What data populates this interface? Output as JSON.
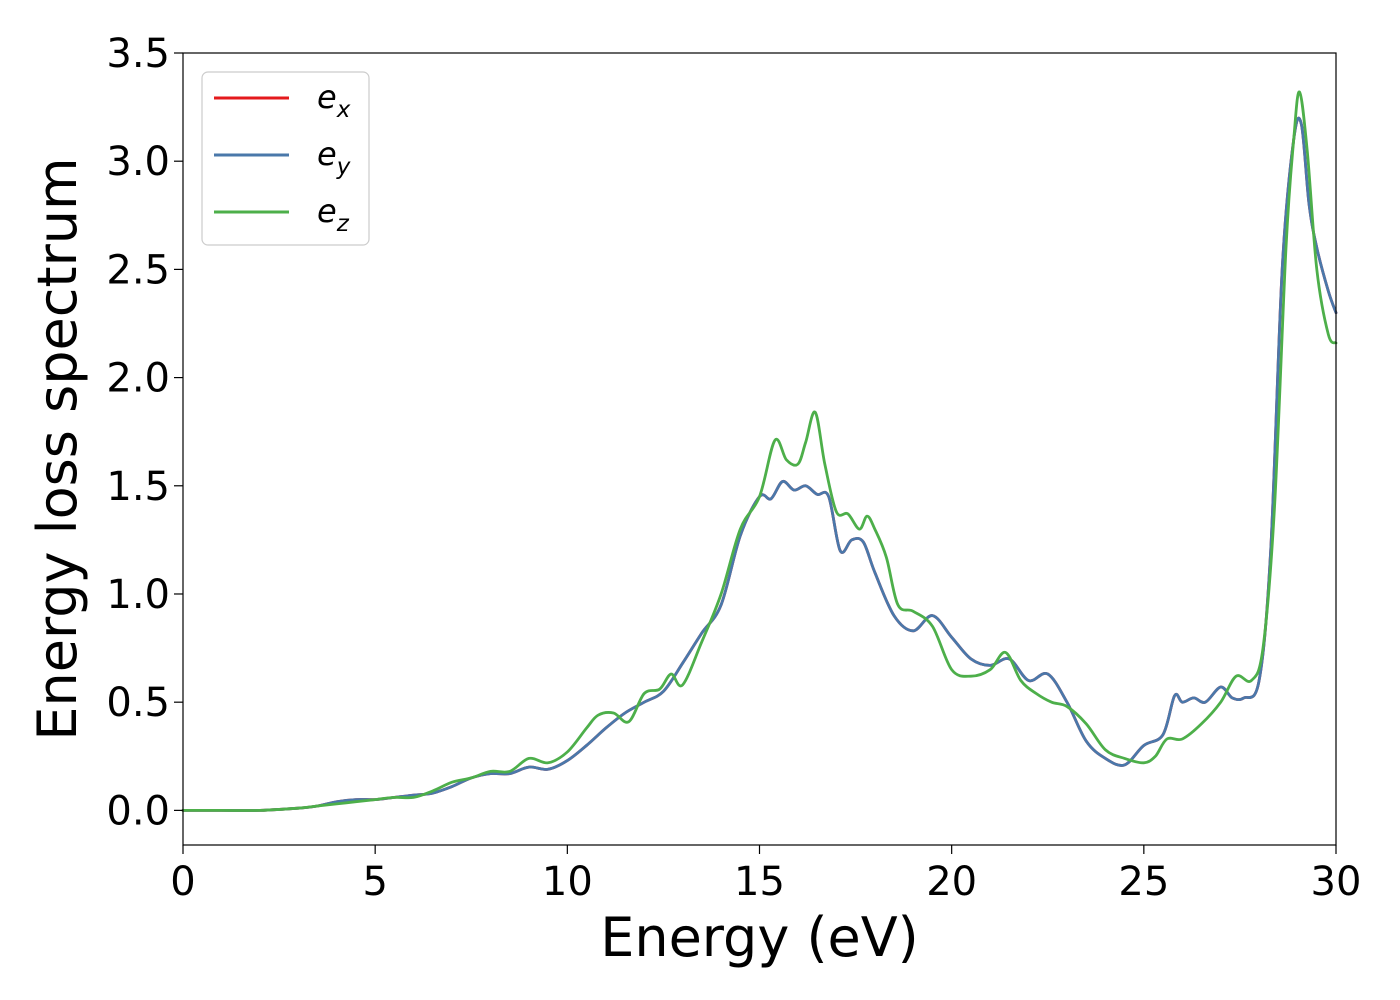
{
  "chart_data": {
    "type": "line",
    "xlabel": "Energy (eV)",
    "ylabel": "Energy loss spectrum",
    "xlim": [
      0,
      30
    ],
    "ylim": [
      -0.16,
      3.5
    ],
    "xticks": [
      0,
      5,
      10,
      15,
      20,
      25,
      30
    ],
    "xtick_labels": [
      "0",
      "5",
      "10",
      "15",
      "20",
      "25",
      "30"
    ],
    "yticks": [
      0.0,
      0.5,
      1.0,
      1.5,
      2.0,
      2.5,
      3.0,
      3.5
    ],
    "ytick_labels": [
      "0.0",
      "0.5",
      "1.0",
      "1.5",
      "2.0",
      "2.5",
      "3.0",
      "3.5"
    ],
    "grid": false,
    "legend_position": "top-left",
    "series": [
      {
        "name": "e",
        "subscript": "x",
        "color": "#e41a1c",
        "x": [
          0,
          1,
          2,
          3,
          3.5,
          4,
          4.5,
          5,
          5.5,
          6,
          6.5,
          7,
          7.5,
          8,
          8.5,
          9,
          9.5,
          10,
          10.5,
          11,
          11.5,
          12,
          12.5,
          13,
          13.5,
          14,
          14.5,
          15,
          15.3,
          15.6,
          15.9,
          16.2,
          16.5,
          16.8,
          17.1,
          17.4,
          17.7,
          18,
          18.5,
          19,
          19.5,
          20,
          20.5,
          21,
          21.5,
          22,
          22.5,
          23,
          23.5,
          24,
          24.5,
          25,
          25.5,
          25.8,
          26,
          26.3,
          26.6,
          27,
          27.3,
          27.6,
          28,
          28.3,
          28.6,
          28.9,
          29.1,
          29.3,
          29.5,
          29.8,
          30
        ],
        "y": [
          0,
          0,
          0,
          0.01,
          0.02,
          0.04,
          0.05,
          0.05,
          0.06,
          0.07,
          0.08,
          0.11,
          0.15,
          0.17,
          0.17,
          0.2,
          0.19,
          0.23,
          0.3,
          0.38,
          0.45,
          0.5,
          0.55,
          0.68,
          0.82,
          0.95,
          1.27,
          1.45,
          1.44,
          1.52,
          1.48,
          1.5,
          1.46,
          1.45,
          1.2,
          1.25,
          1.24,
          1.1,
          0.9,
          0.83,
          0.9,
          0.8,
          0.7,
          0.67,
          0.7,
          0.6,
          0.63,
          0.5,
          0.32,
          0.24,
          0.21,
          0.3,
          0.35,
          0.53,
          0.5,
          0.52,
          0.5,
          0.57,
          0.52,
          0.52,
          0.6,
          1.2,
          2.5,
          3.1,
          3.17,
          2.8,
          2.6,
          2.4,
          2.3
        ]
      },
      {
        "name": "e",
        "subscript": "y",
        "color": "#4a78aa",
        "x": [
          0,
          1,
          2,
          3,
          3.5,
          4,
          4.5,
          5,
          5.5,
          6,
          6.5,
          7,
          7.5,
          8,
          8.5,
          9,
          9.5,
          10,
          10.5,
          11,
          11.5,
          12,
          12.5,
          13,
          13.5,
          14,
          14.5,
          15,
          15.3,
          15.6,
          15.9,
          16.2,
          16.5,
          16.8,
          17.1,
          17.4,
          17.7,
          18,
          18.5,
          19,
          19.5,
          20,
          20.5,
          21,
          21.5,
          22,
          22.5,
          23,
          23.5,
          24,
          24.5,
          25,
          25.5,
          25.8,
          26,
          26.3,
          26.6,
          27,
          27.3,
          27.6,
          28,
          28.3,
          28.6,
          28.9,
          29.1,
          29.3,
          29.5,
          29.8,
          30
        ],
        "y": [
          0,
          0,
          0,
          0.01,
          0.02,
          0.04,
          0.05,
          0.05,
          0.06,
          0.07,
          0.08,
          0.11,
          0.15,
          0.17,
          0.17,
          0.2,
          0.19,
          0.23,
          0.3,
          0.38,
          0.45,
          0.5,
          0.55,
          0.68,
          0.82,
          0.95,
          1.27,
          1.45,
          1.44,
          1.52,
          1.48,
          1.5,
          1.46,
          1.45,
          1.2,
          1.25,
          1.24,
          1.1,
          0.9,
          0.83,
          0.9,
          0.8,
          0.7,
          0.67,
          0.7,
          0.6,
          0.63,
          0.5,
          0.32,
          0.24,
          0.21,
          0.3,
          0.35,
          0.53,
          0.5,
          0.52,
          0.5,
          0.57,
          0.52,
          0.52,
          0.6,
          1.2,
          2.5,
          3.1,
          3.17,
          2.8,
          2.6,
          2.4,
          2.3
        ]
      },
      {
        "name": "e",
        "subscript": "z",
        "color": "#4daf4a",
        "x": [
          0,
          1,
          2,
          3,
          3.5,
          4,
          4.5,
          5,
          5.5,
          6,
          6.5,
          7,
          7.5,
          8,
          8.5,
          9,
          9.5,
          10,
          10.5,
          10.8,
          11.2,
          11.6,
          12,
          12.4,
          12.7,
          13,
          13.5,
          14,
          14.5,
          15,
          15.4,
          15.7,
          16,
          16.2,
          16.45,
          16.7,
          17,
          17.3,
          17.6,
          17.8,
          18,
          18.3,
          18.6,
          19,
          19.5,
          20,
          20.5,
          21,
          21.4,
          21.8,
          22.2,
          22.6,
          23,
          23.5,
          24,
          24.5,
          25,
          25.3,
          25.6,
          26,
          26.5,
          27,
          27.4,
          27.8,
          28.1,
          28.4,
          28.7,
          28.9,
          29.05,
          29.25,
          29.5,
          29.8,
          30
        ],
        "y": [
          0,
          0,
          0,
          0.01,
          0.02,
          0.03,
          0.04,
          0.05,
          0.06,
          0.06,
          0.09,
          0.13,
          0.15,
          0.18,
          0.18,
          0.24,
          0.22,
          0.27,
          0.38,
          0.44,
          0.45,
          0.41,
          0.54,
          0.56,
          0.63,
          0.58,
          0.78,
          1.0,
          1.3,
          1.45,
          1.71,
          1.62,
          1.6,
          1.7,
          1.84,
          1.6,
          1.38,
          1.37,
          1.3,
          1.36,
          1.3,
          1.17,
          0.95,
          0.92,
          0.85,
          0.65,
          0.62,
          0.65,
          0.73,
          0.6,
          0.54,
          0.5,
          0.48,
          0.4,
          0.28,
          0.24,
          0.22,
          0.25,
          0.33,
          0.33,
          0.4,
          0.5,
          0.62,
          0.6,
          0.75,
          1.4,
          2.6,
          3.1,
          3.32,
          3.05,
          2.5,
          2.2,
          2.16
        ]
      }
    ]
  }
}
